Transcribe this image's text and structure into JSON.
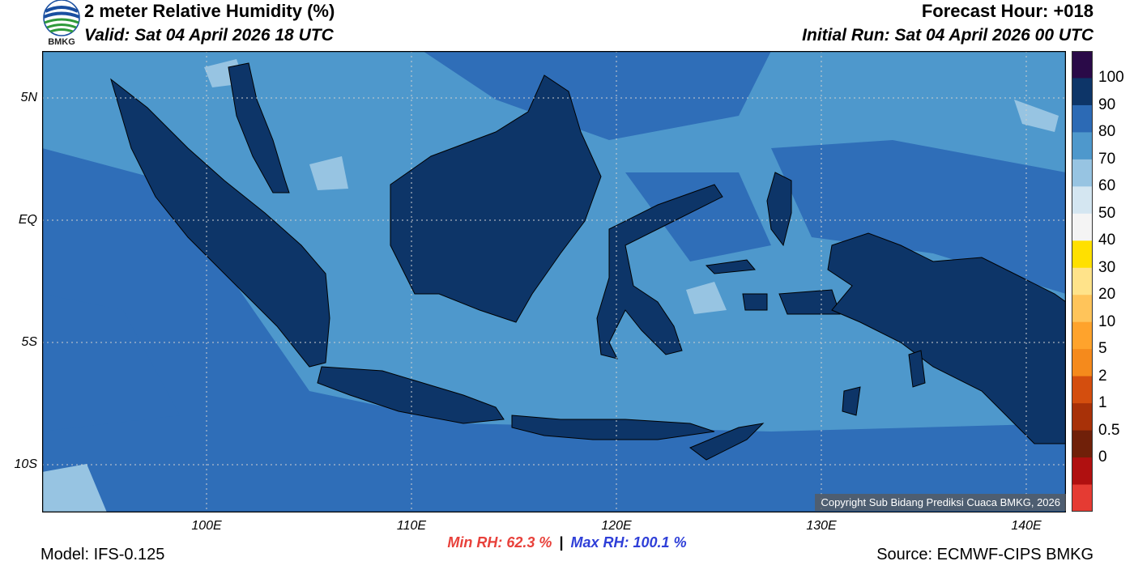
{
  "header": {
    "title": "2 meter Relative Humidity (%)",
    "valid": "Valid: Sat 04 April 2026 18 UTC",
    "forecast_hour": "Forecast Hour: +018",
    "initial_run": "Initial Run: Sat 04 April 2026 00 UTC",
    "logo_text": "BMKG"
  },
  "map": {
    "lat_labels": [
      "5N",
      "EQ",
      "5S",
      "10S"
    ],
    "lon_labels": [
      "100E",
      "110E",
      "120E",
      "130E",
      "140E"
    ],
    "copyright": "Copyright Sub Bidang Prediksi Cuaca BMKG, 2026",
    "colors": {
      "ocean_light": "#4e98cc",
      "ocean_mid": "#2f6eb8",
      "ocean_pale": "#97c4e2",
      "land": "#0d3568"
    }
  },
  "colorbar": {
    "labels": [
      "100",
      "90",
      "80",
      "70",
      "60",
      "50",
      "40",
      "30",
      "20",
      "10",
      "5",
      "2",
      "1",
      "0.5",
      "0"
    ],
    "colors": [
      "#2a0a48",
      "#0d3568",
      "#2c6ab5",
      "#4e98cc",
      "#97c4e2",
      "#d4e6f1",
      "#f4f4f4",
      "#ffe000",
      "#ffe38a",
      "#ffc45a",
      "#ffa32c",
      "#f58a1c",
      "#d44e0e",
      "#a83108",
      "#702009",
      "#b01010",
      "#e53b33"
    ]
  },
  "footer": {
    "min_rh": "Min RH:  62.3 %",
    "separator": "|",
    "max_rh": "Max RH: 100.1 %",
    "model": "Model: IFS-0.125",
    "source": "Source: ECMWF-CIPS BMKG"
  }
}
